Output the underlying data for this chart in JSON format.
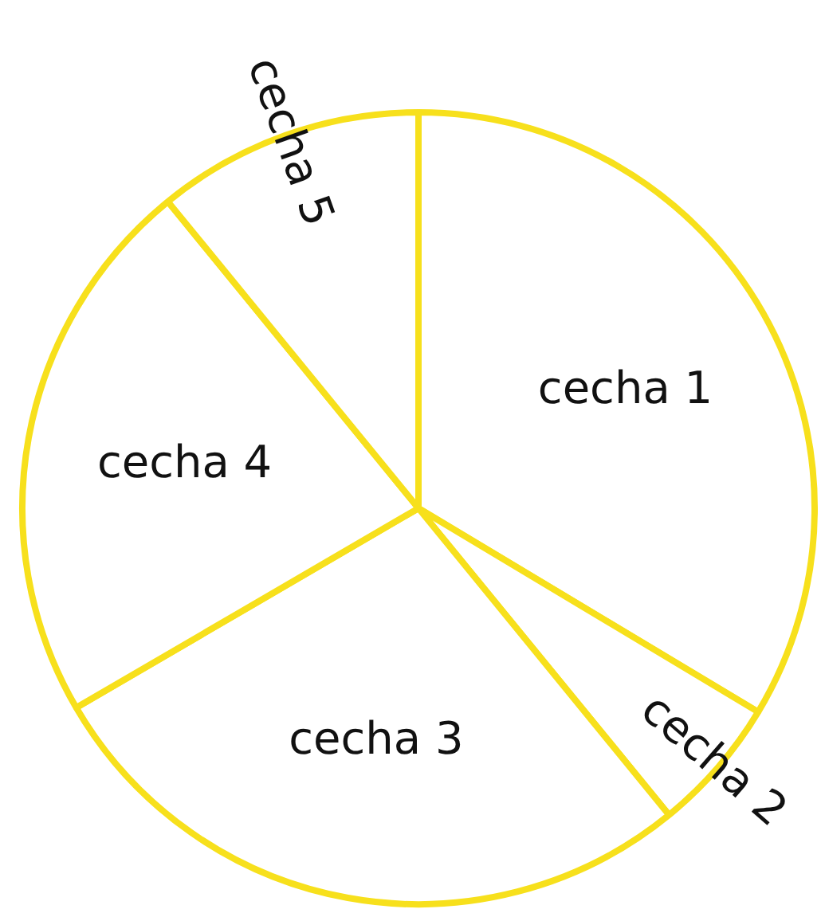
{
  "chart_data": {
    "type": "pie",
    "categories": [
      "cecha 1",
      "cecha 2",
      "cecha 3",
      "cecha 4",
      "cecha 5"
    ],
    "values": [
      33.6,
      5.5,
      27.5,
      22.5,
      10.9
    ],
    "colors": [
      "#ffffff",
      "#ffffff",
      "#ffffff",
      "#ffffff",
      "#ffffff"
    ],
    "legend": false
  }
}
